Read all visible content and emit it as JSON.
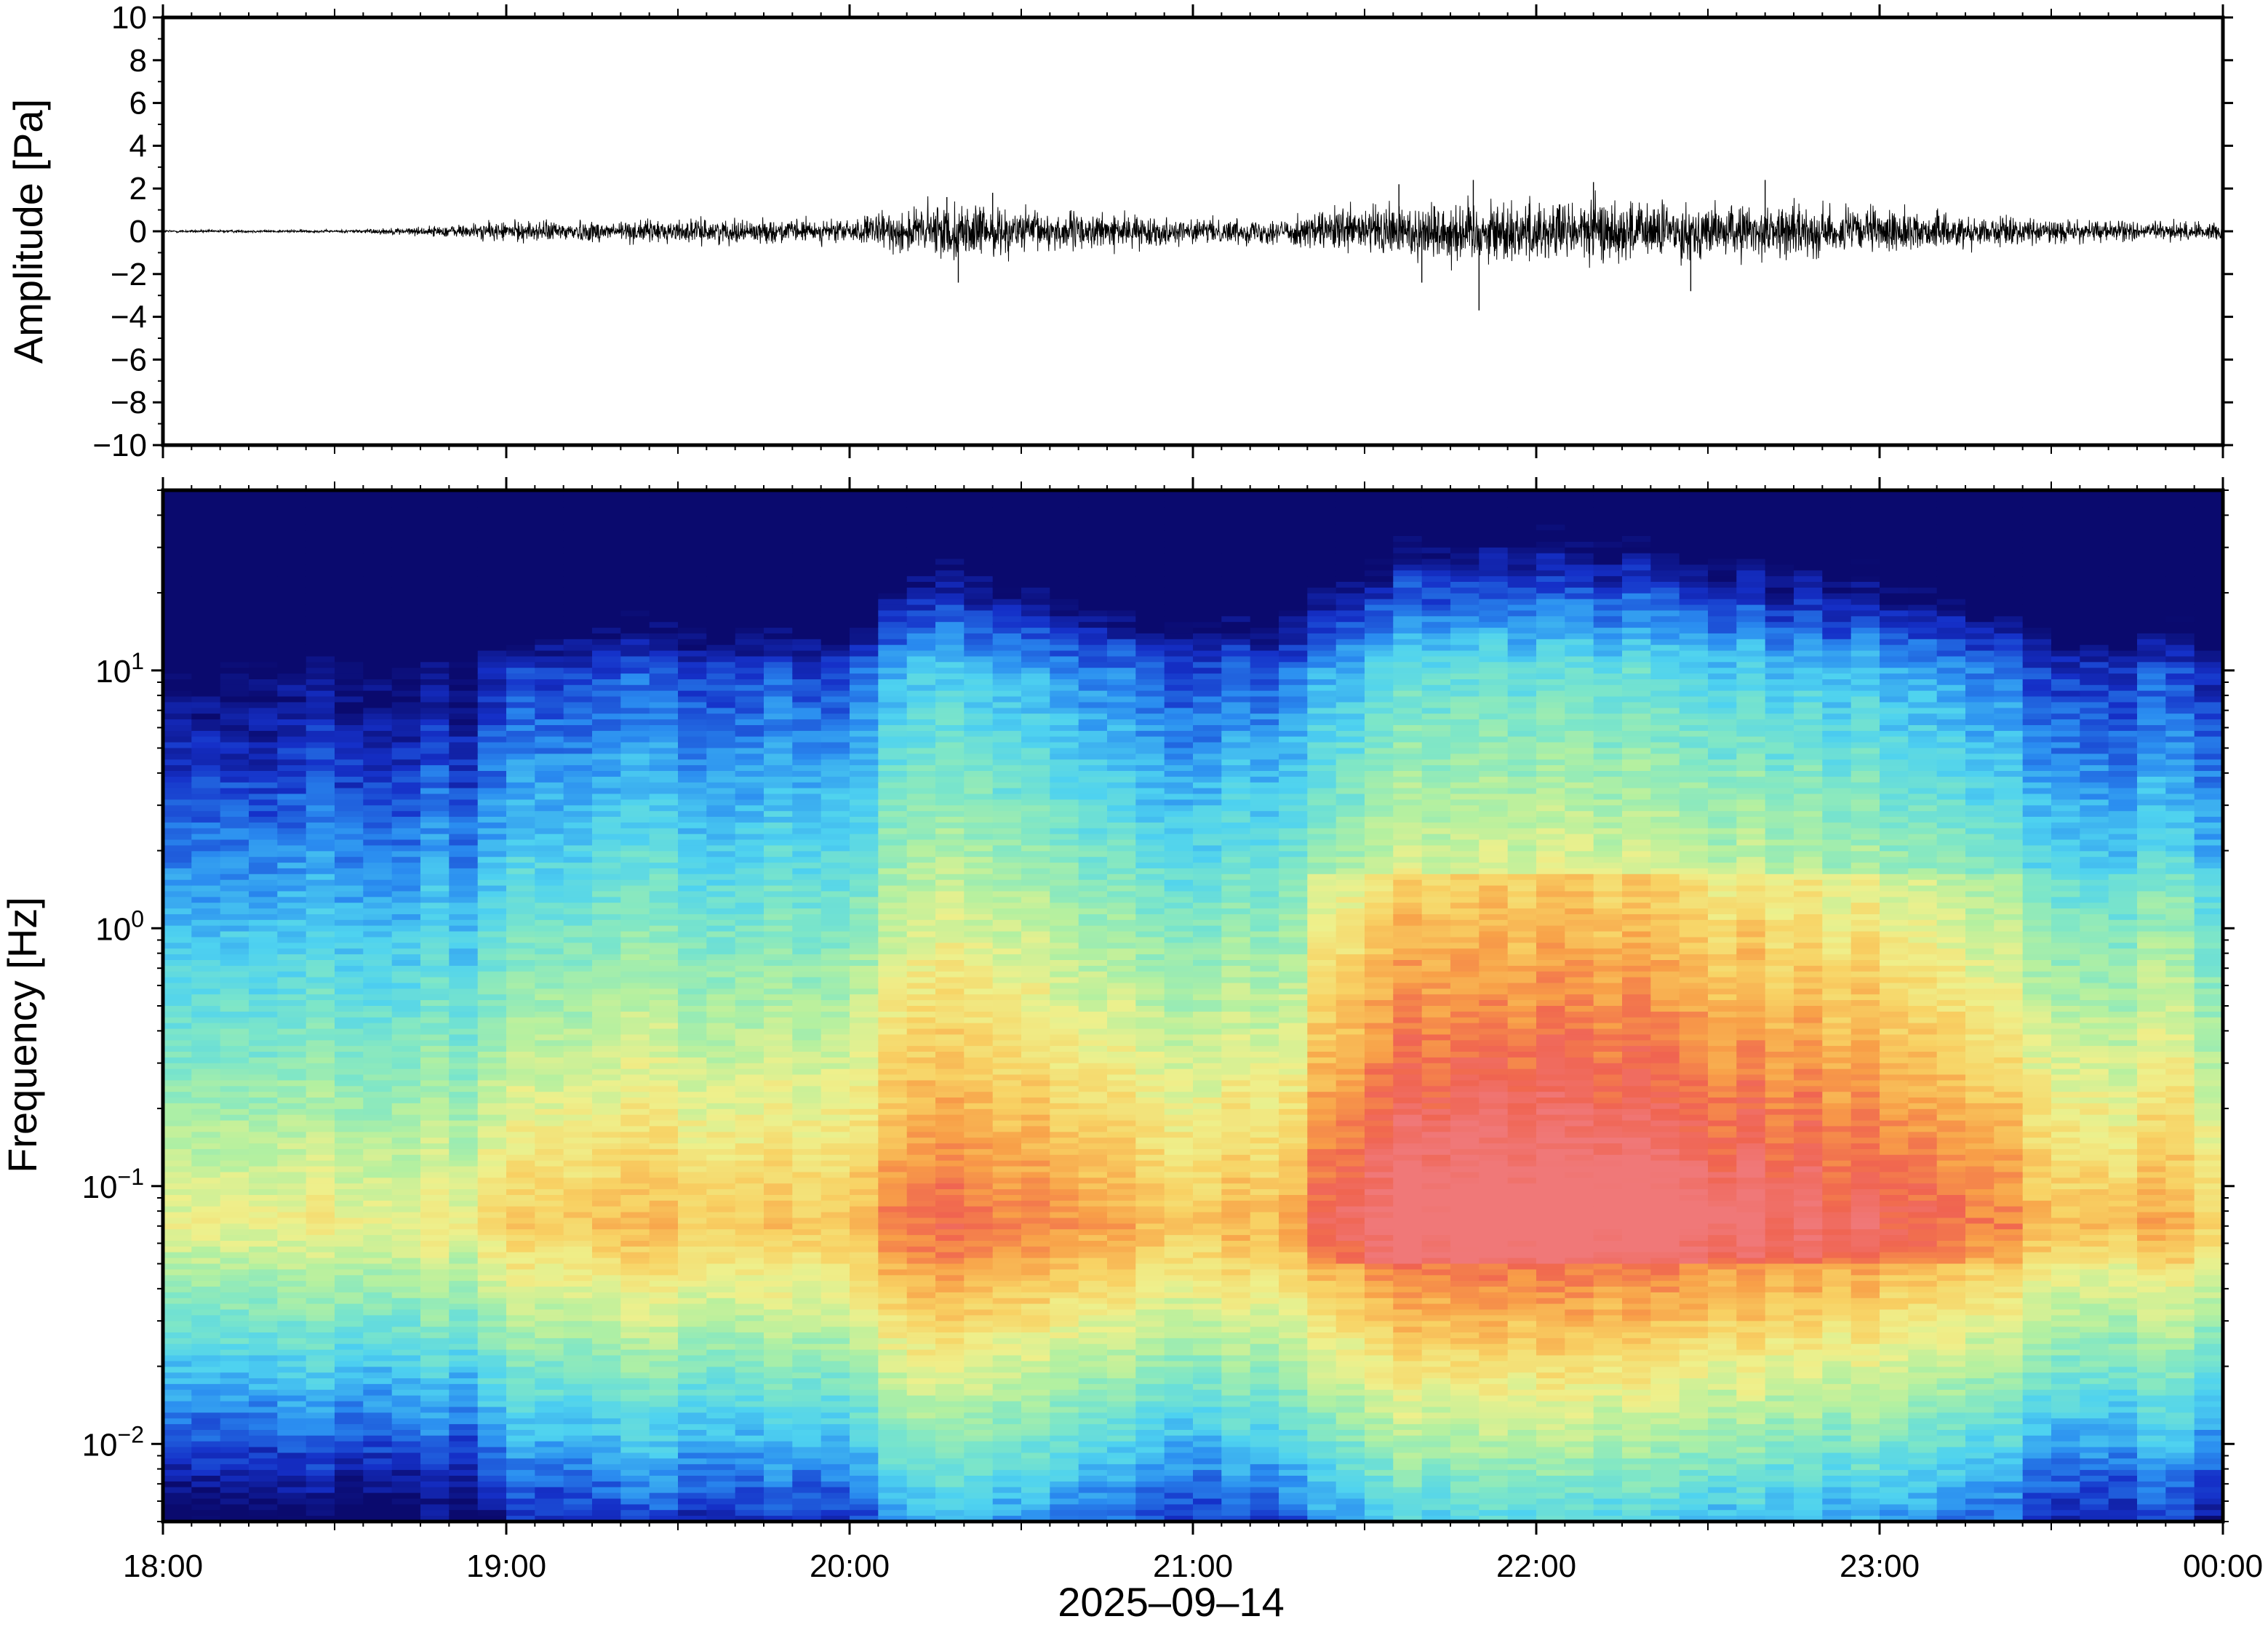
{
  "chart_data": [
    {
      "type": "line",
      "title": "",
      "ylabel": "Amplitude [Pa]",
      "xlabel": "",
      "ylim": [
        -10,
        10
      ],
      "yticks": [
        -10,
        -8,
        -6,
        -4,
        -2,
        0,
        2,
        4,
        6,
        8,
        10
      ],
      "ytick_labels": [
        "−10",
        "−8",
        "−6",
        "−4",
        "−2",
        "0",
        "2",
        "4",
        "6",
        "8",
        "10"
      ],
      "xlim": [
        "18:00",
        "00:00"
      ],
      "grid": false,
      "legend": "none",
      "line_color": "#000000",
      "series": [
        {
          "envelope_x": [
            "18:00",
            "18:30",
            "18:45",
            "19:00",
            "19:30",
            "20:00",
            "20:15",
            "20:30",
            "20:45",
            "21:00",
            "21:15",
            "21:30",
            "21:45",
            "22:00",
            "22:15",
            "22:30",
            "22:45",
            "23:00",
            "23:30",
            "00:00"
          ],
          "envelope_amplitude": [
            0.1,
            0.1,
            0.3,
            0.7,
            0.8,
            0.8,
            2.0,
            1.5,
            1.2,
            0.8,
            0.9,
            1.8,
            2.2,
            2.2,
            2.2,
            1.8,
            1.8,
            1.5,
            0.8,
            0.6
          ],
          "peaks": [
            {
              "x": "20:17",
              "y": 1.6
            },
            {
              "x": "20:19",
              "y": -2.4
            },
            {
              "x": "20:25",
              "y": 1.8
            },
            {
              "x": "21:36",
              "y": 2.2
            },
            {
              "x": "21:40",
              "y": -2.4
            },
            {
              "x": "21:49",
              "y": 2.4
            },
            {
              "x": "21:50",
              "y": -3.7
            },
            {
              "x": "22:10",
              "y": 2.3
            },
            {
              "x": "22:27",
              "y": -2.8
            },
            {
              "x": "22:40",
              "y": 2.4
            }
          ]
        }
      ]
    },
    {
      "type": "heatmap",
      "title": "",
      "ylabel": "Frequency [Hz]",
      "xlabel": "2025–09–14",
      "yscale": "log",
      "ylim": [
        0.005,
        50
      ],
      "yticks": [
        0.01,
        0.1,
        1,
        10
      ],
      "ytick_labels": [
        {
          "base": "10",
          "exp": "−2"
        },
        {
          "base": "10",
          "exp": "−1"
        },
        {
          "base": "10",
          "exp": "0"
        },
        {
          "base": "10",
          "exp": "1"
        }
      ],
      "xlim": [
        "18:00",
        "00:00"
      ],
      "xtick_labels": [
        "18:00",
        "19:00",
        "20:00",
        "21:00",
        "22:00",
        "23:00",
        "00:00"
      ],
      "colormap": "rainbow (dark blue = low power, red = high power)",
      "colormap_stops": [
        "#0a0a6e",
        "#1530c8",
        "#2a8cf0",
        "#4ed2f0",
        "#7de6c8",
        "#b4f0a0",
        "#eef08c",
        "#f8d264",
        "#f8a048",
        "#f06450",
        "#f07878"
      ],
      "grid": false,
      "legend": "none",
      "features": [
        "low power (blue) across most frequencies 18:00-19:00",
        "energy at 0.02-0.2 Hz increases from 19:00",
        "strong energy 0.03-0.2 Hz from 20:15 to 21:00",
        "broadband increase 0.1-1 Hz from 21:20 to 23:30",
        "highest frequencies (>20 Hz) remain low power (dark blue)"
      ]
    }
  ]
}
